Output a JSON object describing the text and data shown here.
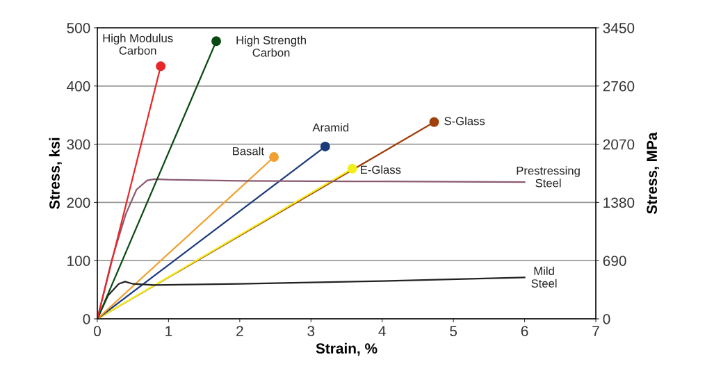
{
  "chart_data": {
    "type": "line",
    "xlabel": "Strain, %",
    "ylabel": "Stress, ksi",
    "y2label": "Stress, MPa",
    "xlim": [
      0,
      7
    ],
    "xticks": [
      0,
      1,
      2,
      3,
      4,
      5,
      6,
      7
    ],
    "ylim": [
      0,
      500
    ],
    "yticks": [
      0,
      100,
      200,
      300,
      400,
      500
    ],
    "y2lim": [
      0,
      3450
    ],
    "y2ticks": [
      0,
      690,
      1380,
      2070,
      2760,
      3450
    ],
    "grid": "y",
    "legend": false,
    "series": [
      {
        "name": "S-Glass",
        "color": "#a0400a",
        "marker": "circle",
        "x": [
          0,
          4.73
        ],
        "values": [
          0,
          338
        ]
      },
      {
        "name": "E-Glass",
        "color": "#f2ee1a",
        "marker": "circle",
        "x": [
          0,
          3.58
        ],
        "values": [
          0,
          258
        ]
      },
      {
        "name": "Aramid",
        "color": "#1a3a7a",
        "marker": "circle",
        "x": [
          0,
          3.2
        ],
        "values": [
          0,
          296
        ]
      },
      {
        "name": "Basalt",
        "color": "#f0a030",
        "marker": "circle",
        "x": [
          0,
          2.48
        ],
        "values": [
          0,
          278
        ]
      },
      {
        "name": "Prestressing\nSteel",
        "color": "#8a5a70",
        "marker": "none",
        "x": [
          0,
          0.2,
          0.4,
          0.55,
          0.7,
          0.8,
          1.0,
          2,
          4,
          6
        ],
        "values": [
          0,
          100,
          180,
          222,
          238,
          240,
          239,
          237,
          236,
          235
        ]
      },
      {
        "name": "Mild\nSteel",
        "color": "#222222",
        "marker": "none",
        "x": [
          0,
          0.15,
          0.3,
          0.39,
          0.5,
          0.8,
          2,
          4,
          6
        ],
        "values": [
          0,
          40,
          60,
          64,
          60,
          58,
          60,
          65,
          71
        ]
      },
      {
        "name": "High Strength\nCarbon",
        "color": "#0a4a12",
        "marker": "circle",
        "x": [
          0,
          1.67
        ],
        "values": [
          0,
          477
        ]
      },
      {
        "name": "High Modulus\nCarbon",
        "color": "#e8272a",
        "marker": "circle",
        "x": [
          0,
          0.89
        ],
        "values": [
          0,
          434
        ]
      }
    ]
  }
}
